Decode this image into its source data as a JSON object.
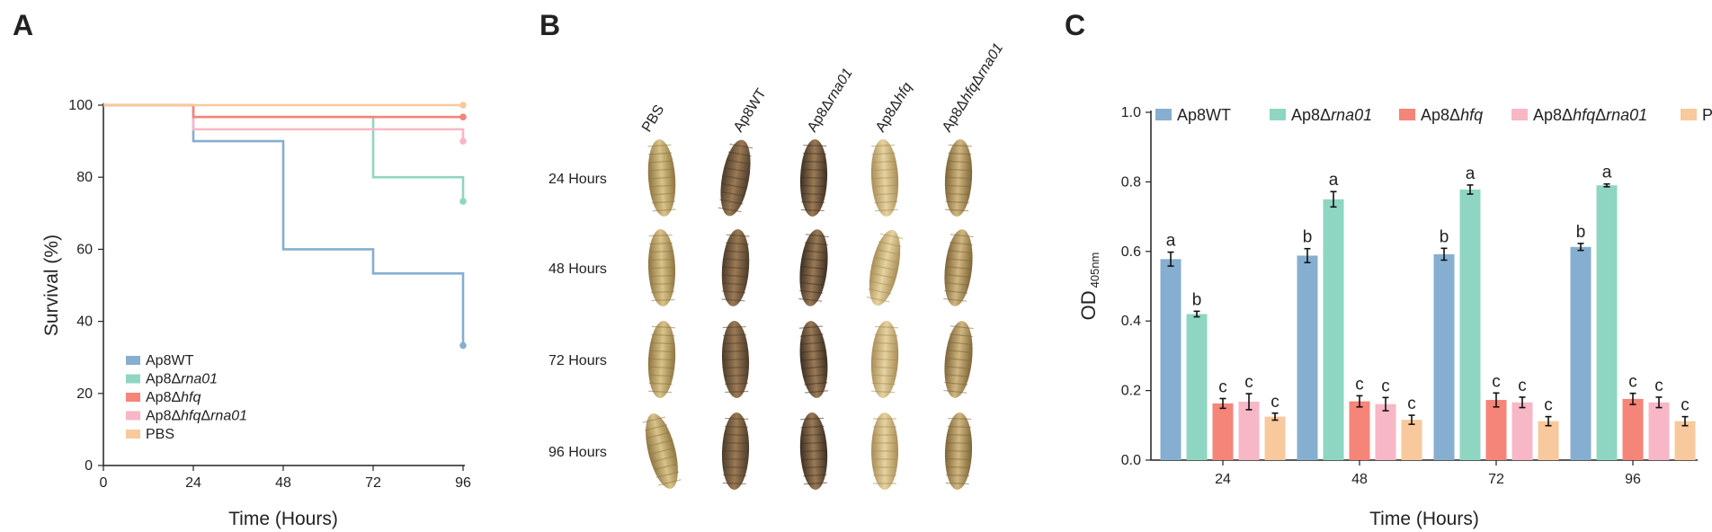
{
  "panels": {
    "a": "A",
    "b": "B",
    "c": "C"
  },
  "colors": {
    "ap8wt": "#86aed0",
    "rna01": "#8fd6c2",
    "hfq": "#f58479",
    "hfqrna01": "#f7b7c6",
    "pbs": "#f8c99c"
  },
  "survival": {
    "xlabel": "Time (Hours)",
    "ylabel": "Survival (%)",
    "xticks": [
      "0",
      "24",
      "48",
      "72",
      "96"
    ],
    "yticks": [
      "0",
      "20",
      "40",
      "60",
      "80",
      "100"
    ],
    "legend": [
      {
        "pre": "Ap8WT",
        "it": "",
        "post": ""
      },
      {
        "pre": "Ap8Δ",
        "it": "rna01",
        "post": ""
      },
      {
        "pre": "Ap8Δ",
        "it": "hfq",
        "post": ""
      },
      {
        "pre": "Ap8Δ",
        "it": "hfq",
        "post": "Δ",
        "it2": "rna01"
      },
      {
        "pre": "PBS",
        "it": "",
        "post": ""
      }
    ]
  },
  "larvae": {
    "columns": [
      {
        "pre": "PBS",
        "it": "",
        "post": "",
        "it2": ""
      },
      {
        "pre": "Ap8WT",
        "it": "",
        "post": "",
        "it2": ""
      },
      {
        "pre": "Ap8Δ",
        "it": "rna01",
        "post": "",
        "it2": ""
      },
      {
        "pre": "Ap8Δ",
        "it": "hfq",
        "post": "",
        "it2": ""
      },
      {
        "pre": "Ap8Δ",
        "it": "hfq",
        "post": "Δ",
        "it2": "rna01"
      }
    ],
    "rows": [
      "24 Hours",
      "48 Hours",
      "72 Hours",
      "96 Hours"
    ]
  },
  "od": {
    "xlabel": "Time (Hours)",
    "ylabel_main": "OD",
    "ylabel_sub": "405nm",
    "yticks": [
      "0.0",
      "0.2",
      "0.4",
      "0.6",
      "0.8",
      "1.0"
    ],
    "legend": [
      {
        "pre": "Ap8WT",
        "it": "",
        "post": "",
        "it2": ""
      },
      {
        "pre": "Ap8Δ",
        "it": "rna01",
        "post": "",
        "it2": ""
      },
      {
        "pre": "Ap8Δ",
        "it": "hfq",
        "post": "",
        "it2": ""
      },
      {
        "pre": "Ap8Δ",
        "it": "hfq",
        "post": "Δ",
        "it2": "rna01"
      },
      {
        "pre": "PBS",
        "it": "",
        "post": "",
        "it2": ""
      }
    ]
  },
  "chart_data": [
    {
      "type": "line",
      "step": true,
      "xlabel": "Time (Hours)",
      "ylabel": "Survival (%)",
      "xlim": [
        0,
        96
      ],
      "ylim": [
        0,
        100
      ],
      "legend_position": "bottom-left",
      "x": [
        0,
        24,
        48,
        72,
        96
      ],
      "series": [
        {
          "name": "Ap8WT",
          "values": [
            100,
            90,
            60,
            53.3,
            33.3
          ]
        },
        {
          "name": "Ap8Δrna01",
          "values": [
            100,
            96.7,
            96.7,
            80,
            73.3
          ]
        },
        {
          "name": "Ap8Δhfq",
          "values": [
            100,
            96.7,
            96.7,
            96.7,
            96.7
          ]
        },
        {
          "name": "Ap8ΔhfqΔrna01",
          "values": [
            100,
            93.3,
            93.3,
            93.3,
            90
          ]
        },
        {
          "name": "PBS",
          "values": [
            100,
            100,
            100,
            100,
            100
          ]
        }
      ]
    },
    {
      "type": "bar",
      "xlabel": "Time (Hours)",
      "ylabel": "OD 405nm",
      "ylim": [
        0,
        1.0
      ],
      "legend_position": "top",
      "categories": [
        "24",
        "48",
        "72",
        "96"
      ],
      "series": [
        {
          "name": "Ap8WT",
          "values": [
            0.578,
            0.588,
            0.592,
            0.613
          ],
          "errors": [
            0.02,
            0.02,
            0.017,
            0.01
          ],
          "letters": [
            "a",
            "b",
            "b",
            "b"
          ]
        },
        {
          "name": "Ap8Δrna01",
          "values": [
            0.42,
            0.75,
            0.778,
            0.79
          ],
          "errors": [
            0.008,
            0.022,
            0.013,
            0.004
          ],
          "letters": [
            "b",
            "a",
            "a",
            "a"
          ]
        },
        {
          "name": "Ap8Δhfq",
          "values": [
            0.163,
            0.169,
            0.173,
            0.176
          ],
          "errors": [
            0.014,
            0.016,
            0.02,
            0.016
          ],
          "letters": [
            "c",
            "c",
            "c",
            "c"
          ]
        },
        {
          "name": "Ap8ΔhfqΔrna01",
          "values": [
            0.168,
            0.161,
            0.166,
            0.166
          ],
          "errors": [
            0.023,
            0.019,
            0.015,
            0.015
          ],
          "letters": [
            "c",
            "c",
            "c",
            "c"
          ]
        },
        {
          "name": "PBS",
          "values": [
            0.125,
            0.116,
            0.112,
            0.112
          ],
          "errors": [
            0.01,
            0.013,
            0.013,
            0.013
          ],
          "letters": [
            "c",
            "c",
            "c",
            "c"
          ]
        }
      ]
    }
  ]
}
